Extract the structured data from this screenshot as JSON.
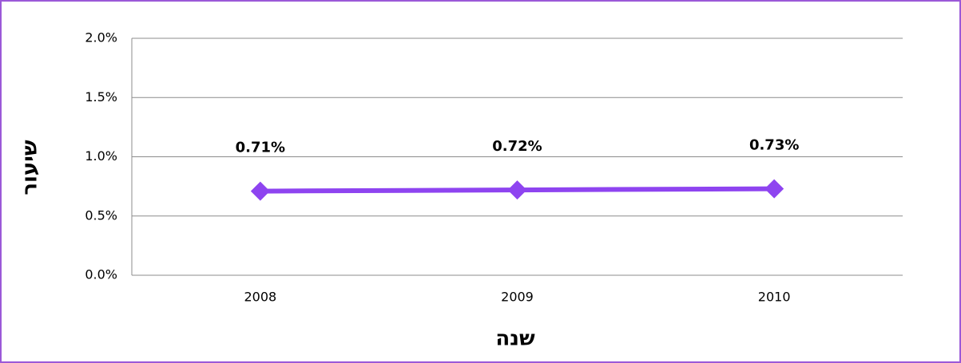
{
  "chart_data": {
    "type": "line",
    "categories": [
      "2008",
      "2009",
      "2010"
    ],
    "series": [
      {
        "name": "שיעור",
        "color": "#8e44f0",
        "values": [
          0.71,
          0.72,
          0.73
        ],
        "value_labels": [
          "0.71%",
          "0.72%",
          "0.73%"
        ]
      }
    ],
    "ylim": [
      0,
      2
    ],
    "yticks": [
      {
        "value": 0,
        "label": "0.0%"
      },
      {
        "value": 0.5,
        "label": "0.5%"
      },
      {
        "value": 1,
        "label": "1.0%"
      },
      {
        "value": 1.5,
        "label": "1.5%"
      },
      {
        "value": 2,
        "label": "2.0%"
      }
    ],
    "y_label": "שיעור",
    "x_label": "שנה",
    "grid": true
  }
}
